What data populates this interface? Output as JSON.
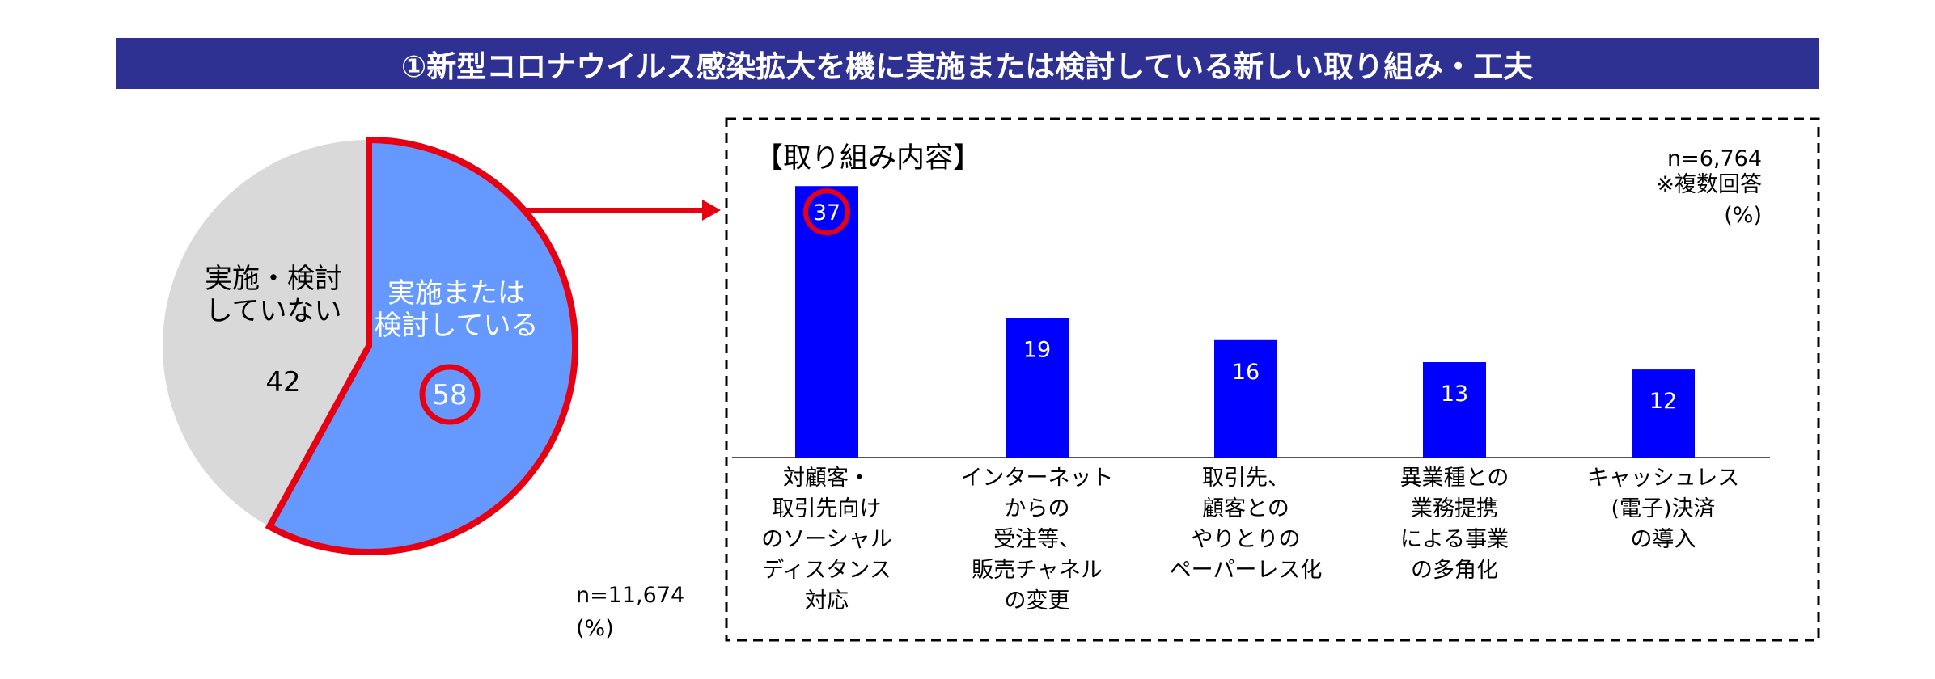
{
  "header": {
    "title": "①新型コロナウイルス感染拡大を機に実施または検討している新しい取り組み・工夫"
  },
  "chart_data": [
    {
      "type": "pie",
      "categories": [
        "実施または検討している",
        "実施・検討していない"
      ],
      "label_lines": [
        [
          "実施または",
          "検討している"
        ],
        [
          "実施・検討",
          "していない"
        ]
      ],
      "values": [
        58,
        42
      ],
      "value_labels": [
        "58",
        "42"
      ],
      "colors": [
        "#6699ff",
        "#d9d9d9"
      ],
      "highlight_color": "#e60012",
      "note_n": "n=11,674",
      "note_unit": "(%)"
    },
    {
      "type": "bar",
      "title": "【取り組み内容】",
      "categories": [
        [
          "対顧客・",
          "取引先向け",
          "のソーシャル",
          "ディスタンス",
          "対応"
        ],
        [
          "インターネット",
          "からの",
          "受注等、",
          "販売チャネル",
          "の変更"
        ],
        [
          "取引先、",
          "顧客との",
          "やりとりの",
          "ペーパーレス化"
        ],
        [
          "異業種との",
          "業務提携",
          "による事業",
          "の多角化"
        ],
        [
          "キャッシュレス",
          "(電子)決済",
          "の導入"
        ]
      ],
      "values": [
        37,
        19,
        16,
        13,
        12
      ],
      "value_labels": [
        "37",
        "19",
        "16",
        "13",
        "12"
      ],
      "bar_color": "#0000ff",
      "ylim": [
        0,
        40
      ],
      "note_n": "n=6,764",
      "note_multi": "※複数回答",
      "note_unit": "(%)"
    }
  ]
}
